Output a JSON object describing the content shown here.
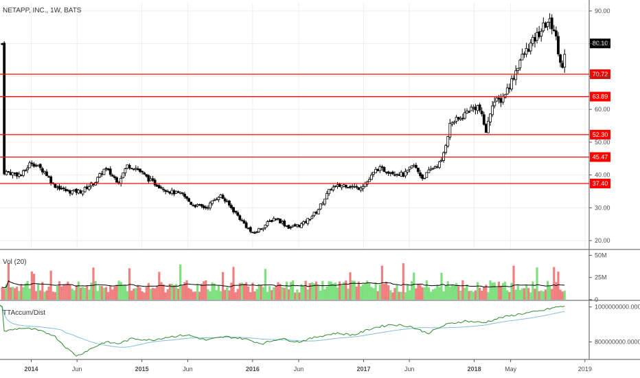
{
  "chart_data": [
    {
      "type": "candlestick",
      "title": "NETAPP, INC., 1W, BATS",
      "y_ticks": [
        "90.00",
        "80.00",
        "70.00",
        "60.00",
        "50.00",
        "40.00",
        "30.00",
        "20.00"
      ],
      "y_tick_values": [
        90,
        80,
        70,
        60,
        50,
        40,
        30,
        20
      ],
      "ylim": [
        17.5,
        92.5
      ],
      "last_price": 80.1,
      "last_price_label": "80.10",
      "horizontal_levels": [
        {
          "value": 70.72,
          "label": "70.72"
        },
        {
          "value": 63.89,
          "label": "63.89"
        },
        {
          "value": 52.3,
          "label": "52.30"
        },
        {
          "value": 45.47,
          "label": "45.47"
        },
        {
          "value": 37.4,
          "label": "37.40"
        }
      ],
      "price_path": [
        [
          "2013-10-01",
          41
        ],
        [
          "2013-12-01",
          40
        ],
        [
          "2014-01-01",
          44
        ],
        [
          "2014-02-15",
          41
        ],
        [
          "2014-03-15",
          37
        ],
        [
          "2014-05-01",
          35
        ],
        [
          "2014-06-15",
          35
        ],
        [
          "2014-08-01",
          38
        ],
        [
          "2014-09-01",
          42
        ],
        [
          "2014-10-15",
          38
        ],
        [
          "2014-11-15",
          43
        ],
        [
          "2014-12-15",
          42
        ],
        [
          "2015-02-01",
          38
        ],
        [
          "2015-04-01",
          35
        ],
        [
          "2015-05-15",
          34
        ],
        [
          "2015-06-15",
          31
        ],
        [
          "2015-08-01",
          30
        ],
        [
          "2015-09-15",
          34
        ],
        [
          "2015-11-01",
          29
        ],
        [
          "2016-01-01",
          22
        ],
        [
          "2016-02-15",
          25
        ],
        [
          "2016-03-15",
          27
        ],
        [
          "2016-05-01",
          24
        ],
        [
          "2016-06-15",
          25
        ],
        [
          "2016-08-01",
          29
        ],
        [
          "2016-09-15",
          36
        ],
        [
          "2016-11-01",
          37
        ],
        [
          "2016-12-15",
          36
        ],
        [
          "2017-01-15",
          38
        ],
        [
          "2017-02-15",
          42
        ],
        [
          "2017-04-01",
          41
        ],
        [
          "2017-05-15",
          40
        ],
        [
          "2017-06-15",
          43
        ],
        [
          "2017-07-15",
          39
        ],
        [
          "2017-08-15",
          42
        ],
        [
          "2017-09-15",
          44
        ],
        [
          "2017-10-15",
          56
        ],
        [
          "2017-11-15",
          57
        ],
        [
          "2017-12-15",
          60
        ],
        [
          "2018-01-15",
          61
        ],
        [
          "2018-02-10",
          53
        ],
        [
          "2018-03-01",
          62
        ],
        [
          "2018-04-01",
          63
        ],
        [
          "2018-05-01",
          68
        ],
        [
          "2018-06-01",
          75
        ],
        [
          "2018-07-01",
          79
        ],
        [
          "2018-08-01",
          83
        ],
        [
          "2018-09-01",
          87
        ],
        [
          "2018-09-20",
          85
        ],
        [
          "2018-10-10",
          76
        ],
        [
          "2018-10-20",
          72
        ],
        [
          "2018-11-01",
          80
        ]
      ]
    },
    {
      "type": "bar",
      "title": "Vol (20)",
      "y_ticks": [
        "50M",
        "25M",
        "0"
      ],
      "y_tick_values": [
        50,
        25,
        0
      ],
      "ylim": [
        0,
        55
      ],
      "unit": "M"
    },
    {
      "type": "line",
      "title": "TTAccum/Dist",
      "y_ticks": [
        "1000000000.0000",
        "800000000.0000"
      ],
      "y_tick_values": [
        1000000000,
        800000000
      ],
      "series_path": [
        [
          "2013-10-01",
          860
        ],
        [
          "2013-12-01",
          880
        ],
        [
          "2014-01-15",
          870
        ],
        [
          "2014-03-15",
          840
        ],
        [
          "2014-05-01",
          760
        ],
        [
          "2014-06-01",
          720
        ],
        [
          "2014-07-15",
          760
        ],
        [
          "2014-09-01",
          800
        ],
        [
          "2014-10-15",
          790
        ],
        [
          "2014-12-01",
          820
        ],
        [
          "2015-02-01",
          810
        ],
        [
          "2015-04-01",
          830
        ],
        [
          "2015-06-01",
          840
        ],
        [
          "2015-08-01",
          810
        ],
        [
          "2015-10-01",
          830
        ],
        [
          "2015-12-01",
          820
        ],
        [
          "2016-02-01",
          790
        ],
        [
          "2016-04-01",
          820
        ],
        [
          "2016-06-01",
          800
        ],
        [
          "2016-08-01",
          830
        ],
        [
          "2016-10-01",
          850
        ],
        [
          "2016-12-01",
          840
        ],
        [
          "2017-02-01",
          880
        ],
        [
          "2017-04-01",
          900
        ],
        [
          "2017-06-01",
          890
        ],
        [
          "2017-08-01",
          850
        ],
        [
          "2017-10-01",
          900
        ],
        [
          "2017-12-01",
          920
        ],
        [
          "2018-02-01",
          910
        ],
        [
          "2018-04-01",
          940
        ],
        [
          "2018-06-01",
          960
        ],
        [
          "2018-08-01",
          975
        ],
        [
          "2018-10-01",
          1000
        ],
        [
          "2018-11-01",
          1005
        ]
      ]
    }
  ],
  "x_axis": {
    "labels": [
      {
        "text": "2014",
        "date": "2014-01-01",
        "bold": true
      },
      {
        "text": "Jun",
        "date": "2014-06-01",
        "bold": false
      },
      {
        "text": "2015",
        "date": "2015-01-01",
        "bold": true
      },
      {
        "text": "Jun",
        "date": "2015-06-01",
        "bold": false
      },
      {
        "text": "2016",
        "date": "2016-01-01",
        "bold": true
      },
      {
        "text": "Jun",
        "date": "2016-06-01",
        "bold": false
      },
      {
        "text": "2017",
        "date": "2017-01-01",
        "bold": true
      },
      {
        "text": "Jun",
        "date": "2017-06-01",
        "bold": false
      },
      {
        "text": "2018",
        "date": "2018-01-01",
        "bold": true
      },
      {
        "text": "May",
        "date": "2018-05-01",
        "bold": false
      },
      {
        "text": "2019",
        "date": "2019-01-01",
        "bold": false
      }
    ],
    "range": [
      "2013-09-20",
      "2019-01-15"
    ]
  },
  "colors": {
    "up": "#ffffff",
    "down": "#000000",
    "wick": "#000000",
    "level": "#ff0000",
    "vol_up": "#7ee07e",
    "vol_down": "#f08080",
    "vol_ma": "#000000",
    "accum": "#2e8b2e",
    "accum_ma": "#7fbfd6",
    "grid": "#eeeeee",
    "axis": "#888888",
    "price_tag": "#000000"
  }
}
